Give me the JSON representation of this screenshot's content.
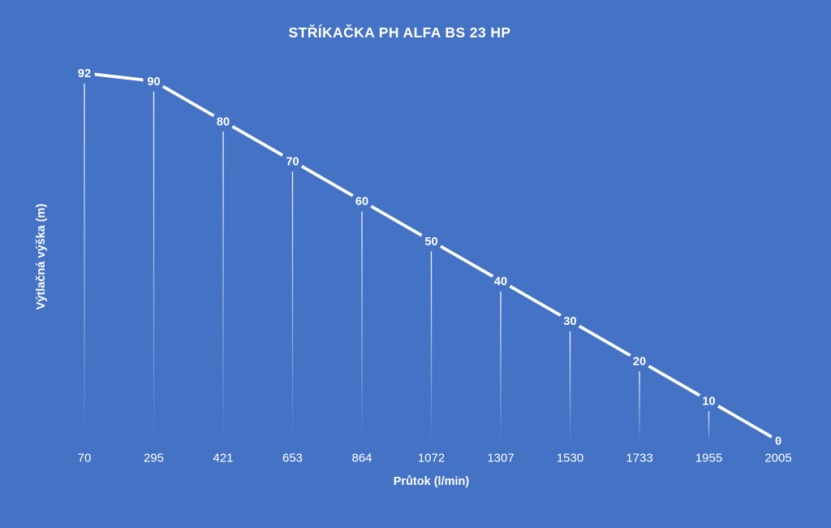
{
  "title": "STŘÍKAČKA PH ALFA BS 23 HP",
  "colors": {
    "background": "#4472C4",
    "line": "#FFFFFF",
    "text": "#FFFFFF",
    "drop_line": "#FFFFFF"
  },
  "chart_data": {
    "type": "line",
    "title": "STŘÍKAČKA PH ALFA BS 23 HP",
    "categories": [
      "70",
      "295",
      "421",
      "653",
      "864",
      "1072",
      "1307",
      "1530",
      "1733",
      "1955",
      "2005"
    ],
    "values": [
      92,
      90,
      80,
      70,
      60,
      50,
      40,
      30,
      20,
      10,
      0
    ],
    "xlabel": "Průtok (l/min)",
    "ylabel": "Výtlačná výška (m)",
    "ylim": [
      0,
      92
    ],
    "grid": false,
    "legend": "none",
    "data_labels": "center",
    "drop_lines": "faded-vertical",
    "axis_lines": "none"
  }
}
